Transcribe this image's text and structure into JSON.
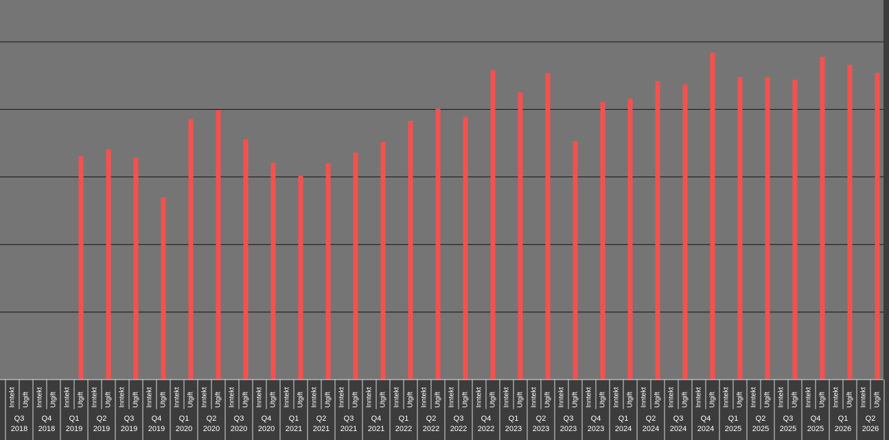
{
  "chart_data": {
    "type": "bar",
    "sub_labels": [
      "Inntekt",
      "Utgift"
    ],
    "groups": [
      {
        "quarter": "Q3",
        "year": "2018"
      },
      {
        "quarter": "Q4",
        "year": "2018"
      },
      {
        "quarter": "Q1",
        "year": "2019"
      },
      {
        "quarter": "Q2",
        "year": "2019"
      },
      {
        "quarter": "Q3",
        "year": "2019"
      },
      {
        "quarter": "Q4",
        "year": "2019"
      },
      {
        "quarter": "Q1",
        "year": "2020"
      },
      {
        "quarter": "Q2",
        "year": "2020"
      },
      {
        "quarter": "Q3",
        "year": "2020"
      },
      {
        "quarter": "Q4",
        "year": "2020"
      },
      {
        "quarter": "Q1",
        "year": "2021"
      },
      {
        "quarter": "Q2",
        "year": "2021"
      },
      {
        "quarter": "Q3",
        "year": "2021"
      },
      {
        "quarter": "Q4",
        "year": "2021"
      },
      {
        "quarter": "Q1",
        "year": "2022"
      },
      {
        "quarter": "Q2",
        "year": "2022"
      },
      {
        "quarter": "Q3",
        "year": "2022"
      },
      {
        "quarter": "Q4",
        "year": "2022"
      },
      {
        "quarter": "Q1",
        "year": "2023"
      },
      {
        "quarter": "Q2",
        "year": "2023"
      },
      {
        "quarter": "Q3",
        "year": "2023"
      },
      {
        "quarter": "Q4",
        "year": "2023"
      },
      {
        "quarter": "Q1",
        "year": "2024"
      },
      {
        "quarter": "Q2",
        "year": "2024"
      },
      {
        "quarter": "Q3",
        "year": "2024"
      },
      {
        "quarter": "Q4",
        "year": "2024"
      },
      {
        "quarter": "Q1",
        "year": "2025"
      },
      {
        "quarter": "Q2",
        "year": "2025"
      },
      {
        "quarter": "Q3",
        "year": "2025"
      },
      {
        "quarter": "Q4",
        "year": "2025"
      },
      {
        "quarter": "Q1",
        "year": "2026"
      },
      {
        "quarter": "Q2",
        "year": "2026"
      }
    ],
    "values": [
      null,
      null,
      3.31,
      3.41,
      3.29,
      2.7,
      3.86,
      3.99,
      3.56,
      3.21,
      3.02,
      3.2,
      3.36,
      3.52,
      3.83,
      4.01,
      3.89,
      4.58,
      4.25,
      4.54,
      3.53,
      4.11,
      4.16,
      4.42,
      4.37,
      4.84,
      4.48,
      4.48,
      4.44,
      4.78,
      4.66,
      4.54
    ],
    "color": "#f4514e",
    "ylim": [
      0,
      5.62
    ],
    "yticks": [
      1,
      2,
      3,
      4,
      5
    ],
    "grid": true
  }
}
